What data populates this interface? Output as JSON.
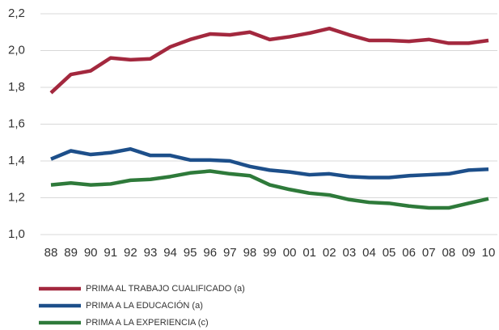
{
  "chart_data": {
    "type": "line",
    "categories": [
      "88",
      "89",
      "90",
      "91",
      "92",
      "93",
      "94",
      "95",
      "96",
      "97",
      "98",
      "99",
      "00",
      "01",
      "02",
      "03",
      "04",
      "05",
      "06",
      "07",
      "08",
      "09",
      "10"
    ],
    "series": [
      {
        "name": "PRIMA AL TRABAJO CUALIFICADO (a)",
        "color": "#a3283e",
        "values": [
          1.77,
          1.87,
          1.89,
          1.96,
          1.95,
          1.955,
          2.02,
          2.06,
          2.09,
          2.085,
          2.1,
          2.06,
          2.075,
          2.095,
          2.12,
          2.085,
          2.055,
          2.055,
          2.05,
          2.06,
          2.04,
          2.04,
          2.055
        ]
      },
      {
        "name": "PRIMA A LA EDUCACIÓN (a)",
        "color": "#1d4f8a",
        "values": [
          1.41,
          1.455,
          1.435,
          1.445,
          1.465,
          1.43,
          1.43,
          1.405,
          1.405,
          1.4,
          1.37,
          1.35,
          1.34,
          1.325,
          1.33,
          1.315,
          1.31,
          1.31,
          1.32,
          1.325,
          1.33,
          1.35,
          1.355
        ]
      },
      {
        "name": "PRIMA A LA EXPERIENCIA (c)",
        "color": "#2e7a3a",
        "values": [
          1.27,
          1.28,
          1.27,
          1.275,
          1.295,
          1.3,
          1.315,
          1.335,
          1.345,
          1.33,
          1.32,
          1.27,
          1.245,
          1.225,
          1.215,
          1.19,
          1.175,
          1.17,
          1.155,
          1.145,
          1.145,
          1.17,
          1.195
        ]
      }
    ],
    "ylim": [
      1.0,
      2.2
    ],
    "yticks": [
      {
        "value": 1.0,
        "label": "1,0"
      },
      {
        "value": 1.2,
        "label": "1,2"
      },
      {
        "value": 1.4,
        "label": "1,4"
      },
      {
        "value": 1.6,
        "label": "1,6"
      },
      {
        "value": 1.8,
        "label": "1,8"
      },
      {
        "value": 2.0,
        "label": "2,0"
      },
      {
        "value": 2.2,
        "label": "2,2"
      }
    ],
    "grid": true
  }
}
